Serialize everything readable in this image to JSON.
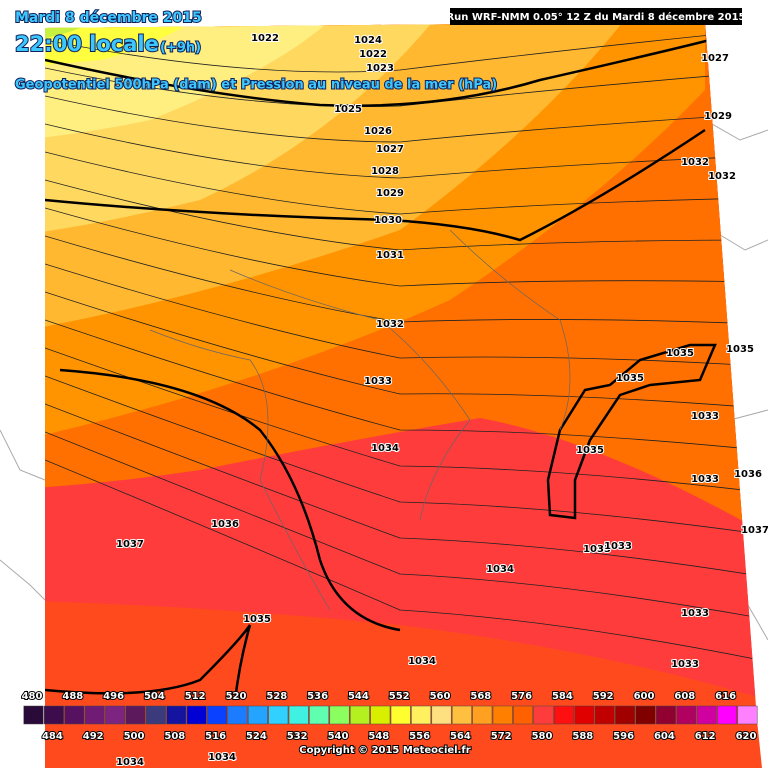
{
  "header": {
    "date": "Mardi 8 décembre 2015",
    "time": "22:00 locale",
    "lead": "(+9h)",
    "subtitle": "Geopotentiel 500hPa (dam) et Pression au niveau de la mer (hPa)",
    "run": "Run WRF-NMM 0.05° 12 Z du Mardi 8 décembre 2015"
  },
  "legend": {
    "top_labels": [
      480,
      488,
      496,
      504,
      512,
      520,
      528,
      536,
      544,
      552,
      560,
      568,
      576,
      584,
      592,
      600,
      608,
      616
    ],
    "bottom_labels": [
      484,
      492,
      500,
      508,
      516,
      524,
      532,
      540,
      548,
      556,
      564,
      572,
      580,
      588,
      596,
      604,
      612,
      620
    ],
    "colors": [
      "#2a0a38",
      "#3c0c4c",
      "#561260",
      "#701c74",
      "#7c2480",
      "#5c1a5c",
      "#3a3a7c",
      "#1414a0",
      "#0000d4",
      "#0a40ff",
      "#1c7cff",
      "#22a4ff",
      "#30d0ff",
      "#40f0e0",
      "#60ffb0",
      "#8cff60",
      "#b4f020",
      "#d8f000",
      "#ffff30",
      "#fff060",
      "#ffe080",
      "#ffc040",
      "#ffa020",
      "#ff8000",
      "#ff6000",
      "#ff3c3c",
      "#ff1010",
      "#e00000",
      "#c00000",
      "#a00000",
      "#800000",
      "#900030",
      "#b00060",
      "#d000a0",
      "#ff00ff",
      "#ff80ff"
    ]
  },
  "isobar_labels": [
    "1022",
    "1024",
    "1022",
    "1023",
    "1025",
    "1026",
    "1027",
    "1028",
    "1029",
    "1030",
    "1031",
    "1032",
    "1033",
    "1034",
    "1036",
    "1037",
    "1035",
    "1034",
    "1034",
    "1033",
    "1033",
    "1035",
    "1035",
    "1035",
    "1033",
    "1033",
    "1033",
    "1033",
    "1032",
    "1029",
    "1027",
    "1035",
    "1034",
    "1034",
    "1032",
    "1036",
    "1037"
  ],
  "footer": {
    "copyright": "Copyright © 2015 Meteociel.fr"
  }
}
